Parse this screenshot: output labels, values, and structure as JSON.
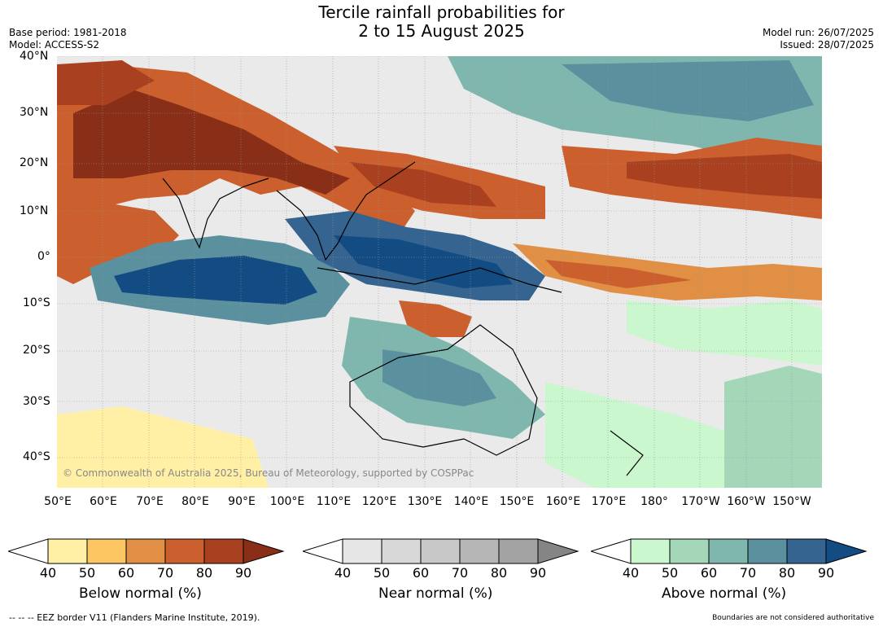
{
  "title_line1": "Tercile rainfall probabilities for",
  "title_line2": "2 to 15 August 2025",
  "meta_left": [
    "Base period: 1981-2018",
    "Model: ACCESS-S2"
  ],
  "meta_right": [
    "Model run: 26/07/2025",
    "Issued: 28/07/2025"
  ],
  "lat_labels": [
    "40°N",
    "30°N",
    "20°N",
    "10°N",
    "0°",
    "10°S",
    "20°S",
    "30°S",
    "40°S"
  ],
  "lon_labels": [
    "50°E",
    "60°E",
    "70°E",
    "80°E",
    "90°E",
    "100°E",
    "110°E",
    "120°E",
    "130°E",
    "140°E",
    "150°E",
    "160°E",
    "170°E",
    "180°",
    "170°W",
    "160°W",
    "150°W"
  ],
  "copyright": "© Commonwealth of Australia 2025, Bureau of Meteorology, supported by COSPPac",
  "colorbars": [
    {
      "label": "Below normal (%)",
      "ticks": [
        "40",
        "50",
        "60",
        "70",
        "80",
        "90"
      ],
      "colors": [
        "#fff0a6",
        "#fdc663",
        "#e08f45",
        "#cb5f2e",
        "#a9401f",
        "#8a2f17"
      ]
    },
    {
      "label": "Near normal (%)",
      "ticks": [
        "40",
        "50",
        "60",
        "70",
        "80",
        "90"
      ],
      "colors": [
        "#e6e6e6",
        "#d8d8d8",
        "#c8c8c8",
        "#b6b6b6",
        "#a3a3a3",
        "#858585"
      ]
    },
    {
      "label": "Above normal (%)",
      "ticks": [
        "40",
        "50",
        "60",
        "70",
        "80",
        "90"
      ],
      "colors": [
        "#caf7cd",
        "#a3d7b8",
        "#7fb7ae",
        "#5b909f",
        "#34648f",
        "#134b83"
      ]
    }
  ],
  "footer_left": "--  --  -- EEZ border V11 (Flanders Marine Institute, 2019).",
  "footer_right": "Boundaries are not considered authoritative"
}
